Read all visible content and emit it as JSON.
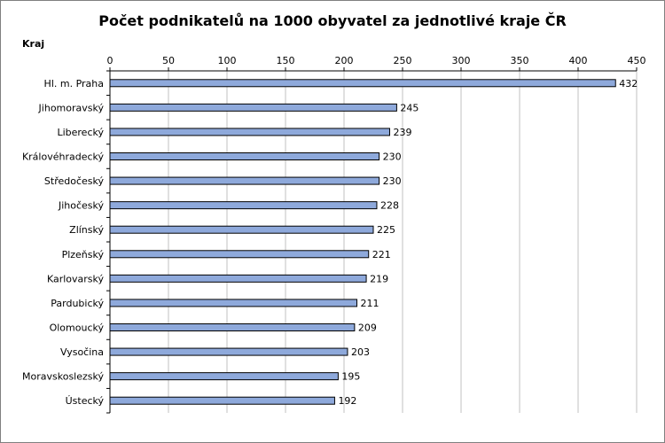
{
  "chart_data": {
    "type": "bar",
    "orientation": "horizontal",
    "title": "Počet podnikatelů na 1000 obyvatel za jednotlivé kraje ČR",
    "category_axis_title": "Kraj",
    "categories": [
      "Hl. m. Praha",
      "Jihomoravský",
      "Liberecký",
      "Královéhradecký",
      "Středočeský",
      "Jihočeský",
      "Zlínský",
      "Plzeňský",
      "Karlovarský",
      "Pardubický",
      "Olomoucký",
      "Vysočina",
      "Moravskoslezský",
      "Ústecký"
    ],
    "values": [
      432,
      245,
      239,
      230,
      230,
      228,
      225,
      221,
      219,
      211,
      209,
      203,
      195,
      192
    ],
    "xlim": [
      0,
      450
    ],
    "xticks": [
      0,
      50,
      100,
      150,
      200,
      250,
      300,
      350,
      400,
      450
    ],
    "x_axis_position": "top",
    "grid": true,
    "data_labels": true,
    "bar_color": "#8EA9DB",
    "bar_border_color": "#000000",
    "grid_color": "#C0C0C0"
  }
}
